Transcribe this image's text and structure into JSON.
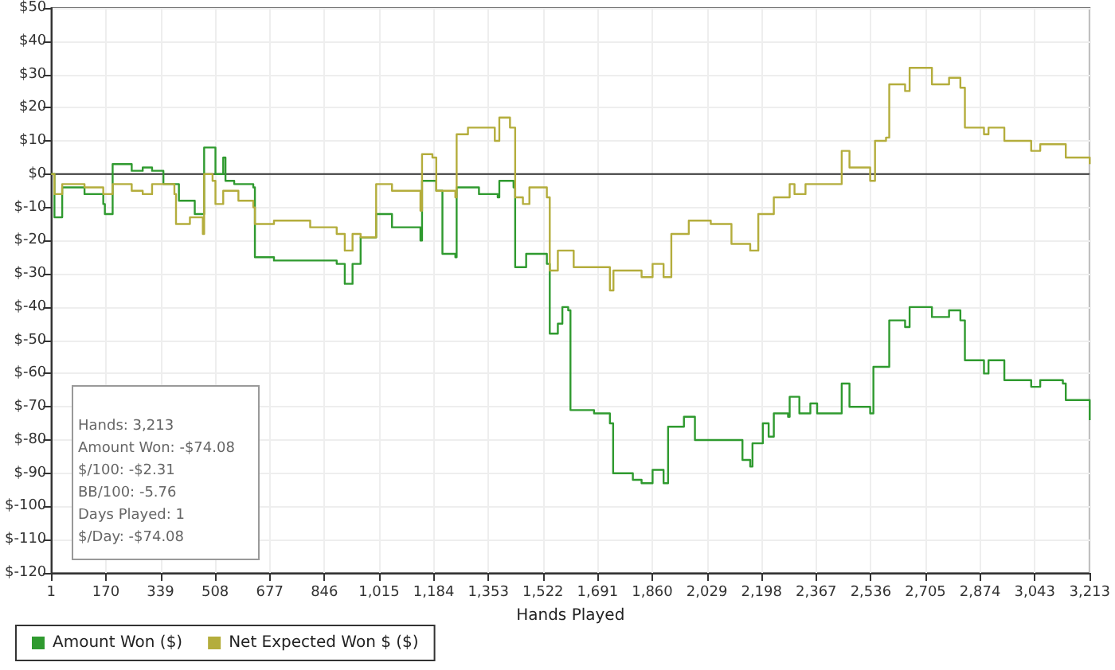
{
  "chart_data": {
    "type": "step",
    "xlabel": "Hands Played",
    "xlim": [
      1,
      3213
    ],
    "xticks": [
      1,
      170,
      339,
      508,
      677,
      846,
      {
        "value": 1015,
        "label": "1,015"
      },
      {
        "value": 1184,
        "label": "1,184"
      },
      {
        "value": 1353,
        "label": "1,353"
      },
      {
        "value": 1522,
        "label": "1,522"
      },
      {
        "value": 1691,
        "label": "1,691"
      },
      {
        "value": 1860,
        "label": "1,860"
      },
      {
        "value": 2029,
        "label": "2,029"
      },
      {
        "value": 2198,
        "label": "2,198"
      },
      {
        "value": 2367,
        "label": "2,367"
      },
      {
        "value": 2536,
        "label": "2,536"
      },
      {
        "value": 2705,
        "label": "2,705"
      },
      {
        "value": 2874,
        "label": "2,874"
      },
      {
        "value": 3043,
        "label": "3,043"
      },
      {
        "value": 3213,
        "label": "3,213"
      }
    ],
    "ylim": [
      -120,
      50
    ],
    "yticks": [
      {
        "value": -120,
        "label": "$-120"
      },
      {
        "value": -110,
        "label": "$-110"
      },
      {
        "value": -100,
        "label": "$-100"
      },
      {
        "value": -90,
        "label": "$-90"
      },
      {
        "value": -80,
        "label": "$-80"
      },
      {
        "value": -70,
        "label": "$-70"
      },
      {
        "value": -60,
        "label": "$-60"
      },
      {
        "value": -50,
        "label": "$-50"
      },
      {
        "value": -40,
        "label": "$-40"
      },
      {
        "value": -30,
        "label": "$-30"
      },
      {
        "value": -20,
        "label": "$-20"
      },
      {
        "value": -10,
        "label": "$-10"
      },
      {
        "value": 0,
        "label": "$0"
      },
      {
        "value": 10,
        "label": "$10"
      },
      {
        "value": 20,
        "label": "$20"
      },
      {
        "value": 30,
        "label": "$30"
      },
      {
        "value": 40,
        "label": "$40"
      },
      {
        "value": 50,
        "label": "$50"
      }
    ],
    "grid": true,
    "legend": "bottom left",
    "marker": "none",
    "line_style": "solid",
    "ref_lines": [
      {
        "axis": "y",
        "value": 0,
        "color": "#333333"
      }
    ],
    "annotations": [
      "Hands: 3,213",
      "Amount Won: -$74.08",
      "$/100: -$2.31",
      "BB/100: -5.76",
      "Days Played: 1",
      "$/Day: -$74.08"
    ],
    "series": [
      {
        "name": "Amount Won ($)",
        "color": "#2f9a2f",
        "x": [
          1,
          11,
          30,
          35,
          104,
          162,
          167,
          191,
          250,
          284,
          313,
          348,
          396,
          445,
          470,
          474,
          509,
          533,
          540,
          567,
          626,
          631,
          690,
          802,
          884,
          909,
          933,
          948,
          958,
          1006,
          1055,
          1143,
          1148,
          1192,
          1211,
          1251,
          1255,
          1324,
          1382,
          1387,
          1431,
          1436,
          1470,
          1534,
          1543,
          1568,
          1582,
          1600,
          1607,
          1680,
          1729,
          1739,
          1800,
          1827,
          1861,
          1895,
          1909,
          1958,
          1992,
          2056,
          2139,
          2163,
          2170,
          2202,
          2220,
          2236,
          2280,
          2285,
          2315,
          2349,
          2370,
          2432,
          2446,
          2470,
          2534,
          2544,
          2583,
          2593,
          2642,
          2656,
          2725,
          2778,
          2813,
          2827,
          2886,
          2900,
          2949,
          3032,
          3060,
          3130,
          3139,
          3213
        ],
        "values": [
          0,
          -13,
          -13,
          -4,
          -6,
          -9,
          -12,
          3,
          1,
          2,
          1,
          -3,
          -8,
          -12,
          -12,
          8,
          0,
          5,
          -2,
          -3,
          -4,
          -25,
          -26,
          -26,
          -27,
          -33,
          -27,
          -27,
          -19,
          -12,
          -16,
          -20,
          -2,
          -5,
          -24,
          -25,
          -4,
          -6,
          -7,
          -2,
          -4,
          -28,
          -24,
          -27,
          -48,
          -45,
          -40,
          -41,
          -71,
          -72,
          -75,
          -90,
          -92,
          -93,
          -89,
          -93,
          -76,
          -73,
          -80,
          -80,
          -86,
          -88,
          -81,
          -75,
          -79,
          -72,
          -73,
          -67,
          -72,
          -69,
          -72,
          -72,
          -63,
          -70,
          -72,
          -58,
          -58,
          -44,
          -46,
          -40,
          -43,
          -41,
          -44,
          -56,
          -60,
          -56,
          -62,
          -64,
          -62,
          -63,
          -68,
          -74
        ]
      },
      {
        "name": "Net Expected Won $ ($)",
        "color": "#b4ad3c",
        "x": [
          1,
          11,
          35,
          104,
          162,
          191,
          250,
          284,
          313,
          382,
          387,
          430,
          470,
          474,
          500,
          509,
          533,
          580,
          626,
          631,
          690,
          802,
          884,
          909,
          933,
          958,
          1006,
          1055,
          1143,
          1148,
          1180,
          1192,
          1251,
          1255,
          1290,
          1373,
          1387,
          1420,
          1436,
          1460,
          1480,
          1534,
          1543,
          1568,
          1617,
          1729,
          1740,
          1827,
          1861,
          1895,
          1919,
          1973,
          2041,
          2105,
          2163,
          2188,
          2236,
          2285,
          2300,
          2334,
          2432,
          2446,
          2470,
          2534,
          2549,
          2583,
          2593,
          2642,
          2656,
          2725,
          2778,
          2813,
          2827,
          2886,
          2900,
          2949,
          3032,
          3060,
          3130,
          3139,
          3213
        ],
        "values": [
          0,
          -6,
          -3,
          -4,
          -6,
          -3,
          -5,
          -6,
          -3,
          -6,
          -15,
          -13,
          -18,
          0,
          -2,
          -9,
          -5,
          -8,
          -10,
          -15,
          -14,
          -16,
          -18,
          -23,
          -18,
          -19,
          -3,
          -5,
          -11,
          6,
          5,
          -5,
          -7,
          12,
          14,
          10,
          17,
          14,
          -7,
          -9,
          -4,
          -7,
          -29,
          -23,
          -28,
          -35,
          -29,
          -31,
          -27,
          -31,
          -18,
          -14,
          -15,
          -21,
          -23,
          -12,
          -7,
          -3,
          -6,
          -3,
          -3,
          7,
          2,
          -2,
          10,
          11,
          27,
          25,
          32,
          27,
          29,
          26,
          14,
          12,
          14,
          10,
          7,
          9,
          9,
          5,
          3
        ]
      }
    ]
  }
}
